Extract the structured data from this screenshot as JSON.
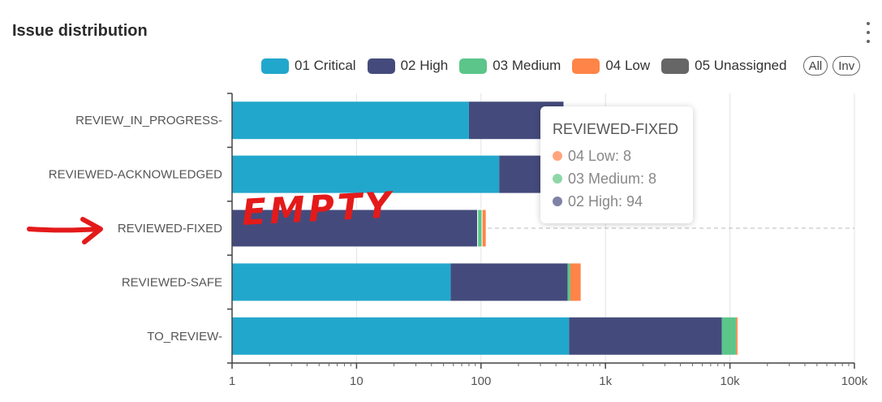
{
  "header": {
    "title": "Issue distribution"
  },
  "legend": {
    "items": [
      {
        "label": "01 Critical",
        "color": "#22a7cc"
      },
      {
        "label": "02 High",
        "color": "#444b7c"
      },
      {
        "label": "03 Medium",
        "color": "#5bc58a"
      },
      {
        "label": "04 Low",
        "color": "#ff8448"
      },
      {
        "label": "05 Unassigned",
        "color": "#666666"
      }
    ],
    "all_label": "All",
    "inv_label": "Inv"
  },
  "tooltip": {
    "title": "REVIEWED-FIXED",
    "rows": [
      {
        "text": "04 Low: 8",
        "color": "#ffa57e"
      },
      {
        "text": "03 Medium: 8",
        "color": "#8ed7a9"
      },
      {
        "text": "02 High: 94",
        "color": "#7e82a4"
      }
    ]
  },
  "annotation": {
    "text": "EMPTY",
    "arrow_color": "#e41a1a"
  },
  "chart_data": {
    "type": "bar",
    "orientation": "horizontal",
    "stacked": true,
    "x_scale": "log",
    "xlim": [
      1,
      100000
    ],
    "x_ticks": [
      "1",
      "10",
      "100",
      "1k",
      "10k",
      "100k"
    ],
    "categories": [
      "REVIEW_IN_PROGRESS-",
      "REVIEWED-ACKNOWLEDGED",
      "REVIEWED-FIXED",
      "REVIEWED-SAFE",
      "TO_REVIEW-"
    ],
    "series": [
      {
        "name": "01 Critical",
        "color": "#22a7cc",
        "values": [
          80,
          140,
          0,
          57,
          510
        ]
      },
      {
        "name": "02 High",
        "color": "#444b7c",
        "values": [
          380,
          560,
          94,
          440,
          8100
        ]
      },
      {
        "name": "03 Medium",
        "color": "#5bc58a",
        "values": [
          0,
          0,
          8,
          25,
          2600
        ]
      },
      {
        "name": "04 Low",
        "color": "#ff8448",
        "values": [
          0,
          0,
          8,
          110,
          300
        ]
      },
      {
        "name": "05 Unassigned",
        "color": "#666666",
        "values": [
          0,
          0,
          0,
          0,
          0
        ]
      }
    ],
    "highlighted_category": "REVIEWED-FIXED",
    "grid": "vertical"
  }
}
